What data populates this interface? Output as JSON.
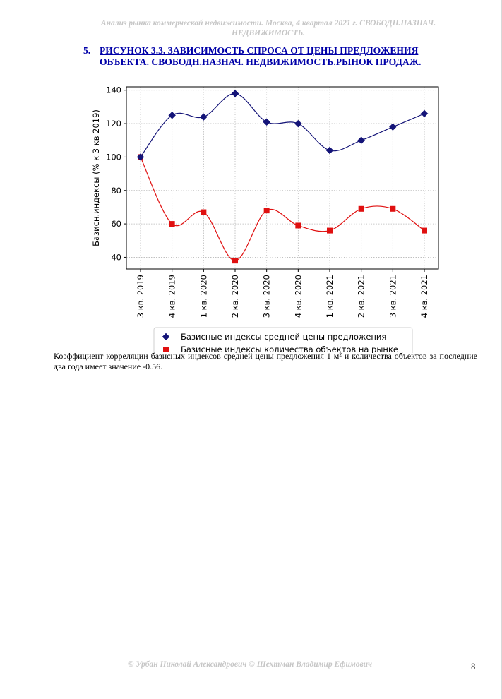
{
  "document": {
    "header": "Анализ рынка коммерческой недвижимости.   Москва,  4 квартал 2021 г.   СВОБОДН.НАЗНАЧ. НЕДВИЖИМОСТЬ.",
    "heading_number": "5.",
    "heading_text": "РИСУНОК 3.3. ЗАВИСИМОСТЬ СПРОСА ОТ ЦЕНЫ ПРЕДЛОЖЕНИЯ ОБЪЕКТА.  СВОБОДН.НАЗНАЧ. НЕДВИЖИМОСТЬ.РЫНОК ПРОДАЖ.",
    "paragraph": "Коэффициент корреляции базисных индексов средней цены предложения 1 м² и количества объектов за последние два года имеет значение -0.56.",
    "footer": "© Урбан Николай Александрович   © Шехтман Владимир Ефимович",
    "page_number": "8"
  },
  "chart_data": {
    "type": "line",
    "categories": [
      "3 кв. 2019",
      "4 кв. 2019",
      "1 кв. 2020",
      "2 кв. 2020",
      "3 кв. 2020",
      "4 кв. 2020",
      "1 кв. 2021",
      "2 кв. 2021",
      "3 кв. 2021",
      "4 кв. 2021"
    ],
    "ylabel": "Базисн.индексы (% к 3 кв 2019)",
    "xlabel": "",
    "ylim": [
      33,
      142
    ],
    "yticks": [
      40,
      60,
      80,
      100,
      120,
      140
    ],
    "grid": true,
    "legend_position": "bottom",
    "series": [
      {
        "name": "Базисные индексы средней цены предложения",
        "values": [
          100,
          125,
          124,
          138,
          121,
          120,
          104,
          110,
          118,
          126
        ],
        "color": "#141478",
        "marker": "diamond"
      },
      {
        "name": "Базисные индексы количества объектов на рынке",
        "values": [
          100,
          60,
          67,
          38,
          68,
          59,
          56,
          69,
          69,
          56
        ],
        "color": "#e01010",
        "marker": "square"
      }
    ]
  }
}
